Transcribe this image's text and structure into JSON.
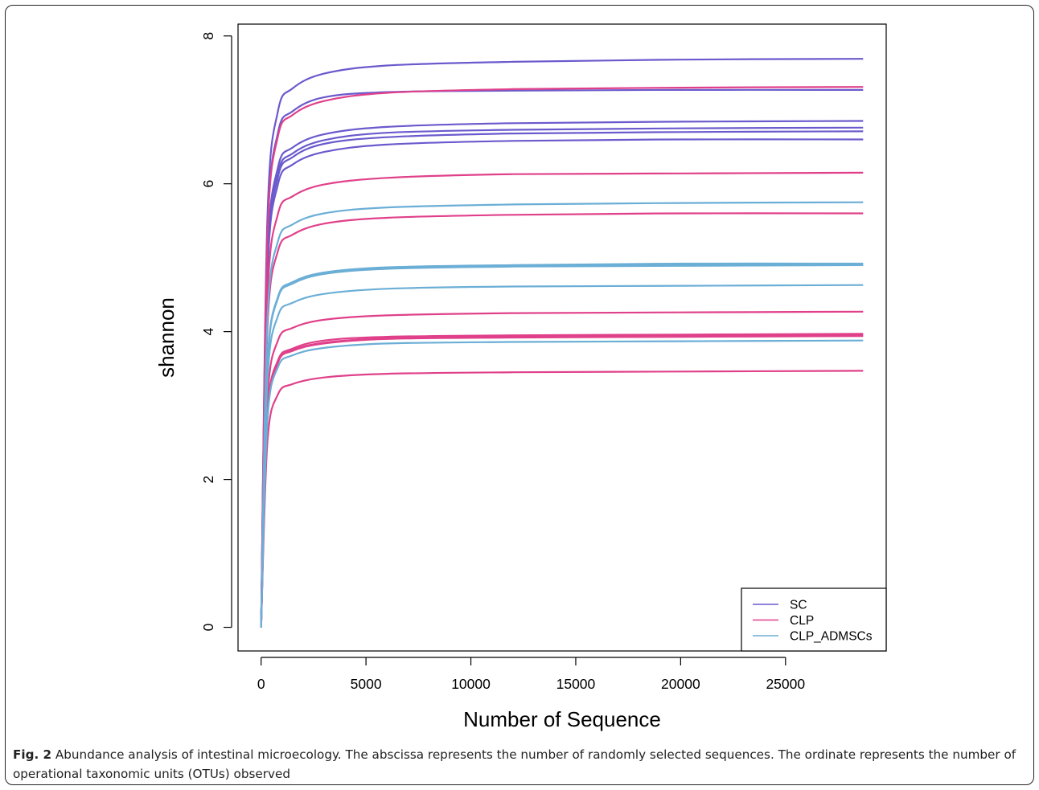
{
  "chart_data": {
    "type": "line",
    "xlabel": "Number of Sequence",
    "ylabel": "shannon",
    "xlim": [
      -1100,
      29800
    ],
    "ylim": [
      -0.32,
      8.16
    ],
    "xticks": [
      0,
      5000,
      10000,
      15000,
      20000,
      25000
    ],
    "yticks": [
      0,
      2,
      4,
      6,
      8
    ],
    "legend_position": "bottom-right",
    "legend": [
      {
        "name": "SC",
        "color": "#6a5acd"
      },
      {
        "name": "CLP",
        "color": "#e0408a"
      },
      {
        "name": "CLP_ADMSCs",
        "color": "#6baed6"
      }
    ],
    "series": [
      {
        "group": "SC",
        "color": "#6a5acd",
        "x": [
          0,
          300,
          800,
          1500,
          3000,
          6000,
          12000,
          20000,
          28700
        ],
        "y": [
          0,
          5.53,
          6.98,
          7.29,
          7.49,
          7.6,
          7.65,
          7.68,
          7.69
        ]
      },
      {
        "group": "SC",
        "color": "#6a5acd",
        "x": [
          0,
          300,
          800,
          1500,
          3000,
          6000,
          12000,
          20000,
          28700
        ],
        "y": [
          0,
          5.3,
          6.69,
          6.98,
          7.17,
          7.24,
          7.26,
          7.27,
          7.27
        ]
      },
      {
        "group": "SC",
        "color": "#6a5acd",
        "x": [
          0,
          300,
          800,
          1500,
          3000,
          6000,
          12000,
          20000,
          28700
        ],
        "y": [
          0,
          4.93,
          6.22,
          6.49,
          6.67,
          6.77,
          6.82,
          6.84,
          6.85
        ]
      },
      {
        "group": "SC",
        "color": "#6a5acd",
        "x": [
          0,
          300,
          800,
          1500,
          3000,
          6000,
          12000,
          20000,
          28700
        ],
        "y": [
          0,
          4.87,
          6.14,
          6.41,
          6.59,
          6.69,
          6.73,
          6.75,
          6.76
        ]
      },
      {
        "group": "SC",
        "color": "#6a5acd",
        "x": [
          0,
          300,
          800,
          1500,
          3000,
          6000,
          12000,
          20000,
          28700
        ],
        "y": [
          0,
          4.83,
          6.09,
          6.36,
          6.54,
          6.63,
          6.68,
          6.7,
          6.71
        ]
      },
      {
        "group": "SC",
        "color": "#6a5acd",
        "x": [
          0,
          300,
          800,
          1500,
          3000,
          6000,
          12000,
          20000,
          28700
        ],
        "y": [
          0,
          4.75,
          5.99,
          6.26,
          6.43,
          6.53,
          6.58,
          6.6,
          6.6
        ]
      },
      {
        "group": "CLP",
        "color": "#e0408a",
        "x": [
          0,
          300,
          800,
          1500,
          3000,
          6000,
          12000,
          20000,
          28700
        ],
        "y": [
          0,
          5.26,
          6.64,
          6.93,
          7.12,
          7.23,
          7.28,
          7.3,
          7.31
        ]
      },
      {
        "group": "CLP",
        "color": "#e0408a",
        "x": [
          0,
          300,
          800,
          1500,
          3000,
          6000,
          12000,
          20000,
          28700
        ],
        "y": [
          0,
          4.43,
          5.59,
          5.83,
          5.99,
          6.08,
          6.13,
          6.14,
          6.15
        ]
      },
      {
        "group": "CLP",
        "color": "#e0408a",
        "x": [
          0,
          300,
          800,
          1500,
          3000,
          6000,
          12000,
          20000,
          28700
        ],
        "y": [
          0,
          4.03,
          5.09,
          5.31,
          5.46,
          5.54,
          5.58,
          5.6,
          5.6
        ]
      },
      {
        "group": "CLP",
        "color": "#e0408a",
        "x": [
          0,
          300,
          800,
          1500,
          3000,
          6000,
          12000,
          20000,
          28700
        ],
        "y": [
          0,
          3.07,
          3.88,
          4.05,
          4.16,
          4.22,
          4.25,
          4.26,
          4.27
        ]
      },
      {
        "group": "CLP",
        "color": "#e0408a",
        "x": [
          0,
          300,
          800,
          1500,
          3000,
          6000,
          12000,
          20000,
          28700
        ],
        "y": [
          0,
          2.86,
          3.61,
          3.77,
          3.88,
          3.93,
          3.95,
          3.96,
          3.97
        ]
      },
      {
        "group": "CLP",
        "color": "#e0408a",
        "x": [
          0,
          300,
          800,
          1500,
          3000,
          6000,
          12000,
          20000,
          28700
        ],
        "y": [
          0,
          2.84,
          3.59,
          3.75,
          3.85,
          3.91,
          3.94,
          3.95,
          3.95
        ]
      },
      {
        "group": "CLP",
        "color": "#e0408a",
        "x": [
          0,
          300,
          800,
          1500,
          3000,
          6000,
          12000,
          20000,
          28700
        ],
        "y": [
          0,
          2.83,
          3.58,
          3.74,
          3.84,
          3.9,
          3.92,
          3.93,
          3.94
        ]
      },
      {
        "group": "CLP",
        "color": "#e0408a",
        "x": [
          0,
          300,
          800,
          1500,
          3000,
          6000,
          12000,
          20000,
          28700
        ],
        "y": [
          0,
          2.5,
          3.15,
          3.29,
          3.38,
          3.43,
          3.45,
          3.46,
          3.47
        ]
      },
      {
        "group": "CLP_ADMSCs",
        "color": "#6baed6",
        "x": [
          0,
          300,
          800,
          1500,
          3000,
          6000,
          12000,
          20000,
          28700
        ],
        "y": [
          0,
          4.14,
          5.22,
          5.45,
          5.6,
          5.68,
          5.72,
          5.74,
          5.75
        ]
      },
      {
        "group": "CLP_ADMSCs",
        "color": "#6baed6",
        "x": [
          0,
          300,
          800,
          1500,
          3000,
          6000,
          12000,
          20000,
          28700
        ],
        "y": [
          0,
          3.54,
          4.47,
          4.67,
          4.8,
          4.87,
          4.9,
          4.92,
          4.92
        ]
      },
      {
        "group": "CLP_ADMSCs",
        "color": "#6baed6",
        "x": [
          0,
          300,
          800,
          1500,
          3000,
          6000,
          12000,
          20000,
          28700
        ],
        "y": [
          0,
          3.53,
          4.46,
          4.66,
          4.79,
          4.86,
          4.89,
          4.9,
          4.91
        ]
      },
      {
        "group": "CLP_ADMSCs",
        "color": "#6baed6",
        "x": [
          0,
          300,
          800,
          1500,
          3000,
          6000,
          12000,
          20000,
          28700
        ],
        "y": [
          0,
          3.52,
          4.45,
          4.65,
          4.78,
          4.85,
          4.88,
          4.89,
          4.9
        ]
      },
      {
        "group": "CLP_ADMSCs",
        "color": "#6baed6",
        "x": [
          0,
          300,
          800,
          1500,
          3000,
          6000,
          12000,
          20000,
          28700
        ],
        "y": [
          0,
          3.33,
          4.21,
          4.39,
          4.51,
          4.58,
          4.61,
          4.62,
          4.63
        ]
      },
      {
        "group": "CLP_ADMSCs",
        "color": "#6baed6",
        "x": [
          0,
          300,
          800,
          1500,
          3000,
          6000,
          12000,
          20000,
          28700
        ],
        "y": [
          0,
          2.79,
          3.52,
          3.68,
          3.78,
          3.84,
          3.86,
          3.87,
          3.88
        ]
      }
    ]
  },
  "caption": {
    "label": "Fig. 2",
    "text": "Abundance analysis of intestinal microecology. The abscissa represents the number of randomly selected sequences. The ordinate represents the number of operational taxonomic units (OTUs) observed"
  }
}
